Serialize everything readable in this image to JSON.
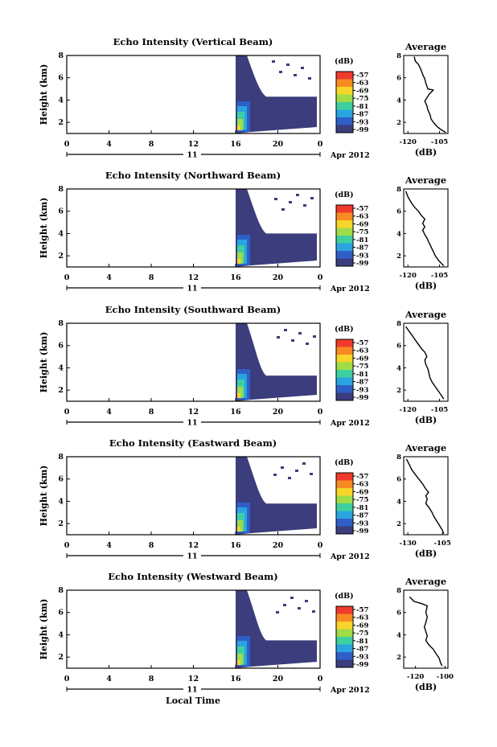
{
  "chart_data": [
    {
      "type": "heatmap",
      "title": "Echo Intensity (Vertical Beam)",
      "ylabel": "Height (km)",
      "x_ticks": [
        "0",
        "4",
        "8",
        "12",
        "16",
        "20",
        "0"
      ],
      "y_ticks": [
        "2",
        "4",
        "6",
        "8"
      ],
      "xlim": [
        0,
        24
      ],
      "ylim": [
        1,
        8
      ],
      "date_day": "11",
      "date_month": "Apr 2012",
      "colorbar": {
        "unit": "(dB)",
        "ticks": [
          "-57",
          "-63",
          "-69",
          "-75",
          "-81",
          "-87",
          "-93",
          "-99"
        ]
      },
      "onset_hour": 16,
      "lower_layer_top_km": 4.3,
      "average_profile": {
        "title": "Average",
        "xlabel": "(dB)",
        "x_ticks": [
          "-120",
          "-105"
        ],
        "xlim": [
          -122,
          -101
        ],
        "ylim": [
          1,
          8
        ],
        "points": [
          [
            -117,
            7.9
          ],
          [
            -116.5,
            7.5
          ],
          [
            -115,
            7.2
          ],
          [
            -114,
            6.8
          ],
          [
            -113,
            6.3
          ],
          [
            -112,
            5.9
          ],
          [
            -111.5,
            5.5
          ],
          [
            -110.5,
            5.0
          ],
          [
            -108,
            4.9
          ],
          [
            -110,
            4.5
          ],
          [
            -111,
            4.2
          ],
          [
            -112,
            3.9
          ],
          [
            -111,
            3.5
          ],
          [
            -110.5,
            3.1
          ],
          [
            -109.5,
            2.7
          ],
          [
            -109,
            2.3
          ],
          [
            -107.5,
            1.9
          ],
          [
            -106,
            1.6
          ],
          [
            -104,
            1.3
          ],
          [
            -102,
            1.1
          ]
        ]
      }
    },
    {
      "type": "heatmap",
      "title": "Echo Intensity (Northward Beam)",
      "ylabel": "Height (km)",
      "x_ticks": [
        "0",
        "4",
        "8",
        "12",
        "16",
        "20",
        "0"
      ],
      "y_ticks": [
        "2",
        "4",
        "6",
        "8"
      ],
      "xlim": [
        0,
        24
      ],
      "ylim": [
        1,
        8
      ],
      "date_day": "11",
      "date_month": "Apr 2012",
      "colorbar": {
        "unit": "(dB)",
        "ticks": [
          "-57",
          "-63",
          "-69",
          "-75",
          "-81",
          "-87",
          "-93",
          "-99"
        ]
      },
      "onset_hour": 16,
      "lower_layer_top_km": 4.0,
      "average_profile": {
        "title": "Average",
        "xlabel": "(dB)",
        "x_ticks": [
          "-120",
          "-105"
        ],
        "xlim": [
          -122,
          -101
        ],
        "ylim": [
          1,
          8
        ],
        "points": [
          [
            -121,
            7.8
          ],
          [
            -120,
            7.3
          ],
          [
            -118.5,
            6.8
          ],
          [
            -117,
            6.4
          ],
          [
            -115,
            6.0
          ],
          [
            -113.5,
            5.6
          ],
          [
            -112,
            5.3
          ],
          [
            -113,
            4.9
          ],
          [
            -112,
            4.6
          ],
          [
            -113,
            4.3
          ],
          [
            -112,
            3.9
          ],
          [
            -111,
            3.6
          ],
          [
            -110,
            3.2
          ],
          [
            -109,
            2.8
          ],
          [
            -108,
            2.4
          ],
          [
            -107,
            2.0
          ],
          [
            -105.5,
            1.6
          ],
          [
            -104,
            1.3
          ],
          [
            -103,
            1.1
          ]
        ]
      }
    },
    {
      "type": "heatmap",
      "title": "Echo Intensity (Southward Beam)",
      "ylabel": "Height (km)",
      "x_ticks": [
        "0",
        "4",
        "8",
        "12",
        "16",
        "20",
        "0"
      ],
      "y_ticks": [
        "2",
        "4",
        "6",
        "8"
      ],
      "xlim": [
        0,
        24
      ],
      "ylim": [
        1,
        8
      ],
      "date_day": "11",
      "date_month": "Apr 2012",
      "colorbar": {
        "unit": "(dB)",
        "ticks": [
          "-57",
          "-63",
          "-69",
          "-75",
          "-81",
          "-87",
          "-93",
          "-99"
        ]
      },
      "onset_hour": 16,
      "lower_layer_top_km": 3.3,
      "average_profile": {
        "title": "Average",
        "xlabel": "(dB)",
        "x_ticks": [
          "-120",
          "-105"
        ],
        "xlim": [
          -122,
          -101
        ],
        "ylim": [
          1,
          8
        ],
        "points": [
          [
            -121,
            7.7
          ],
          [
            -119.5,
            7.3
          ],
          [
            -118,
            6.9
          ],
          [
            -116.5,
            6.5
          ],
          [
            -115,
            6.1
          ],
          [
            -113.5,
            5.7
          ],
          [
            -112,
            5.4
          ],
          [
            -111,
            5.0
          ],
          [
            -112,
            4.7
          ],
          [
            -111.5,
            4.3
          ],
          [
            -110.5,
            3.9
          ],
          [
            -110,
            3.5
          ],
          [
            -109.5,
            3.1
          ],
          [
            -108.5,
            2.7
          ],
          [
            -107,
            2.3
          ],
          [
            -105.5,
            1.9
          ],
          [
            -104,
            1.5
          ],
          [
            -103,
            1.2
          ]
        ]
      }
    },
    {
      "type": "heatmap",
      "title": "Echo Intensity (Eastward Beam)",
      "ylabel": "Height (km)",
      "x_ticks": [
        "0",
        "4",
        "8",
        "12",
        "16",
        "20",
        "0"
      ],
      "y_ticks": [
        "2",
        "4",
        "6",
        "8"
      ],
      "xlim": [
        0,
        24
      ],
      "ylim": [
        1,
        8
      ],
      "date_day": "11",
      "date_month": "Apr 2012",
      "colorbar": {
        "unit": "(dB)",
        "ticks": [
          "-57",
          "-63",
          "-69",
          "-75",
          "-81",
          "-87",
          "-93",
          "-99"
        ]
      },
      "onset_hour": 16,
      "lower_layer_top_km": 3.8,
      "average_profile": {
        "title": "Average",
        "xlabel": "(dB)",
        "x_ticks": [
          "-130",
          "-105"
        ],
        "xlim": [
          -133,
          -101
        ],
        "ylim": [
          1,
          8
        ],
        "points": [
          [
            -131,
            7.8
          ],
          [
            -129,
            7.3
          ],
          [
            -127,
            6.8
          ],
          [
            -124,
            6.3
          ],
          [
            -121.5,
            5.9
          ],
          [
            -119,
            5.5
          ],
          [
            -117,
            5.1
          ],
          [
            -115,
            4.8
          ],
          [
            -117,
            4.5
          ],
          [
            -116,
            4.2
          ],
          [
            -117,
            3.8
          ],
          [
            -114.5,
            3.4
          ],
          [
            -112.5,
            3.0
          ],
          [
            -111,
            2.6
          ],
          [
            -109,
            2.2
          ],
          [
            -107,
            1.8
          ],
          [
            -105,
            1.4
          ],
          [
            -104,
            1.1
          ]
        ]
      }
    },
    {
      "type": "heatmap",
      "title": "Echo Intensity (Westward Beam)",
      "ylabel": "Height (km)",
      "x_ticks": [
        "0",
        "4",
        "8",
        "12",
        "16",
        "20",
        "0"
      ],
      "y_ticks": [
        "2",
        "4",
        "6",
        "8"
      ],
      "xlim": [
        0,
        24
      ],
      "ylim": [
        1,
        8
      ],
      "date_day": "11",
      "date_month": "Apr 2012",
      "xlabel": "Local Time",
      "colorbar": {
        "unit": "(dB)",
        "ticks": [
          "-57",
          "-63",
          "-69",
          "-75",
          "-81",
          "-87",
          "-93",
          "-99"
        ]
      },
      "onset_hour": 16,
      "lower_layer_top_km": 3.5,
      "average_profile": {
        "title": "Average",
        "xlabel": "(dB)",
        "x_ticks": [
          "-120",
          "-100"
        ],
        "xlim": [
          -128,
          -98
        ],
        "ylim": [
          1,
          8
        ],
        "points": [
          [
            -124,
            7.4
          ],
          [
            -121,
            7.0
          ],
          [
            -116,
            6.8
          ],
          [
            -112,
            6.6
          ],
          [
            -113,
            6.0
          ],
          [
            -112,
            5.6
          ],
          [
            -113,
            5.1
          ],
          [
            -114,
            4.7
          ],
          [
            -113,
            4.3
          ],
          [
            -112,
            3.9
          ],
          [
            -113,
            3.5
          ],
          [
            -111,
            3.1
          ],
          [
            -108,
            2.7
          ],
          [
            -106,
            2.3
          ],
          [
            -104,
            1.9
          ],
          [
            -103,
            1.5
          ],
          [
            -102,
            1.2
          ]
        ]
      }
    }
  ],
  "colors": {
    "background": "#3b3d7c",
    "colormap": [
      "#ef3a2c",
      "#f88a22",
      "#f7d52a",
      "#9fdc48",
      "#3ecfa0",
      "#2aa4df",
      "#2f5fc6",
      "#3b3d7c"
    ]
  }
}
